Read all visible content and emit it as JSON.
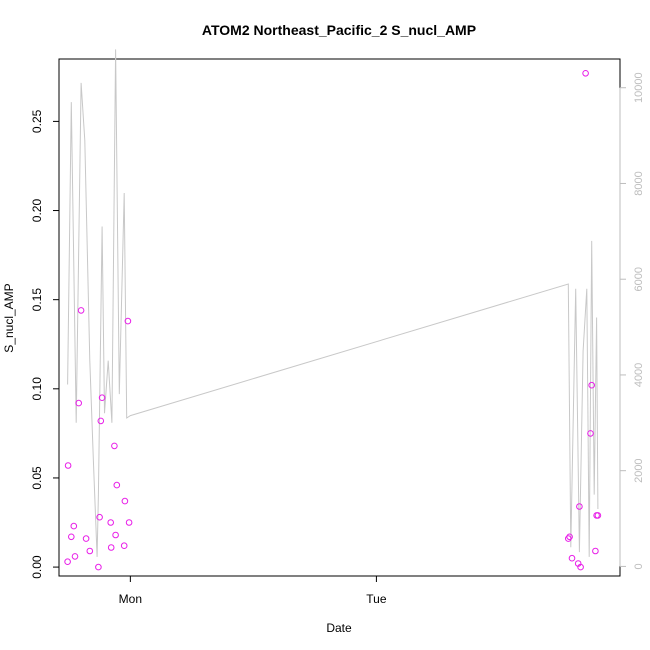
{
  "chart_data": {
    "type": "scatter",
    "title": "ATOM2 Northeast_Pacific_2 S_nucl_AMP",
    "xlabel": "Date",
    "ylabel": "S_nucl_AMP",
    "x_ticks": [
      "Mon",
      "Tue"
    ],
    "y_ticks": [
      "0.00",
      "0.05",
      "0.10",
      "0.15",
      "0.20",
      "0.25"
    ],
    "y_range": [
      -0.005,
      0.285
    ],
    "y2_ticks": [
      "0",
      "2000",
      "4000",
      "6000",
      "8000",
      "10000"
    ],
    "y2_range": [
      -200,
      10600
    ],
    "x_range_days": [
      -0.29,
      1.99
    ],
    "colors": {
      "points": "#e81ee8",
      "line": "#c8c8c8",
      "axis": "#000000",
      "y2_axis": "#bdbdbd"
    },
    "points": [
      {
        "x": -0.255,
        "y": 0.003
      },
      {
        "x": -0.253,
        "y": 0.057
      },
      {
        "x": -0.24,
        "y": 0.017
      },
      {
        "x": -0.23,
        "y": 0.023
      },
      {
        "x": -0.225,
        "y": 0.006
      },
      {
        "x": -0.21,
        "y": 0.092
      },
      {
        "x": -0.2,
        "y": 0.144
      },
      {
        "x": -0.18,
        "y": 0.016
      },
      {
        "x": -0.165,
        "y": 0.009
      },
      {
        "x": -0.13,
        "y": 0.0
      },
      {
        "x": -0.125,
        "y": 0.028
      },
      {
        "x": -0.12,
        "y": 0.082
      },
      {
        "x": -0.115,
        "y": 0.095
      },
      {
        "x": -0.08,
        "y": 0.025
      },
      {
        "x": -0.078,
        "y": 0.011
      },
      {
        "x": -0.065,
        "y": 0.068
      },
      {
        "x": -0.06,
        "y": 0.018
      },
      {
        "x": -0.055,
        "y": 0.046
      },
      {
        "x": -0.025,
        "y": 0.012
      },
      {
        "x": -0.022,
        "y": 0.037
      },
      {
        "x": -0.01,
        "y": 0.138
      },
      {
        "x": -0.005,
        "y": 0.025
      },
      {
        "x": 1.78,
        "y": 0.016
      },
      {
        "x": 1.785,
        "y": 0.017
      },
      {
        "x": 1.795,
        "y": 0.005
      },
      {
        "x": 1.82,
        "y": 0.002
      },
      {
        "x": 1.825,
        "y": 0.034
      },
      {
        "x": 1.83,
        "y": 0.0
      },
      {
        "x": 1.85,
        "y": 0.277
      },
      {
        "x": 1.87,
        "y": 0.075
      },
      {
        "x": 1.875,
        "y": 0.102
      },
      {
        "x": 1.89,
        "y": 0.009
      },
      {
        "x": 1.895,
        "y": 0.029
      },
      {
        "x": 1.9,
        "y": 0.029
      }
    ],
    "line_series": [
      {
        "x": -0.255,
        "y": 3800
      },
      {
        "x": -0.24,
        "y": 9700
      },
      {
        "x": -0.22,
        "y": 3000
      },
      {
        "x": -0.2,
        "y": 10100
      },
      {
        "x": -0.185,
        "y": 8900
      },
      {
        "x": -0.165,
        "y": 4300
      },
      {
        "x": -0.15,
        "y": 2200
      },
      {
        "x": -0.135,
        "y": 200
      },
      {
        "x": -0.13,
        "y": 1500
      },
      {
        "x": -0.115,
        "y": 7100
      },
      {
        "x": -0.105,
        "y": 3200
      },
      {
        "x": -0.09,
        "y": 4300
      },
      {
        "x": -0.075,
        "y": 3000
      },
      {
        "x": -0.06,
        "y": 10800
      },
      {
        "x": -0.045,
        "y": 3600
      },
      {
        "x": -0.025,
        "y": 7800
      },
      {
        "x": -0.015,
        "y": 3100
      },
      {
        "x": 0.0,
        "y": 3150
      },
      {
        "x": 1.78,
        "y": 5900
      },
      {
        "x": 1.79,
        "y": 400
      },
      {
        "x": 1.81,
        "y": 5800
      },
      {
        "x": 1.825,
        "y": 300
      },
      {
        "x": 1.84,
        "y": 4500
      },
      {
        "x": 1.855,
        "y": 5800
      },
      {
        "x": 1.865,
        "y": 200
      },
      {
        "x": 1.875,
        "y": 6800
      },
      {
        "x": 1.885,
        "y": 1500
      },
      {
        "x": 1.895,
        "y": 5200
      },
      {
        "x": 1.9,
        "y": 1200
      }
    ]
  }
}
